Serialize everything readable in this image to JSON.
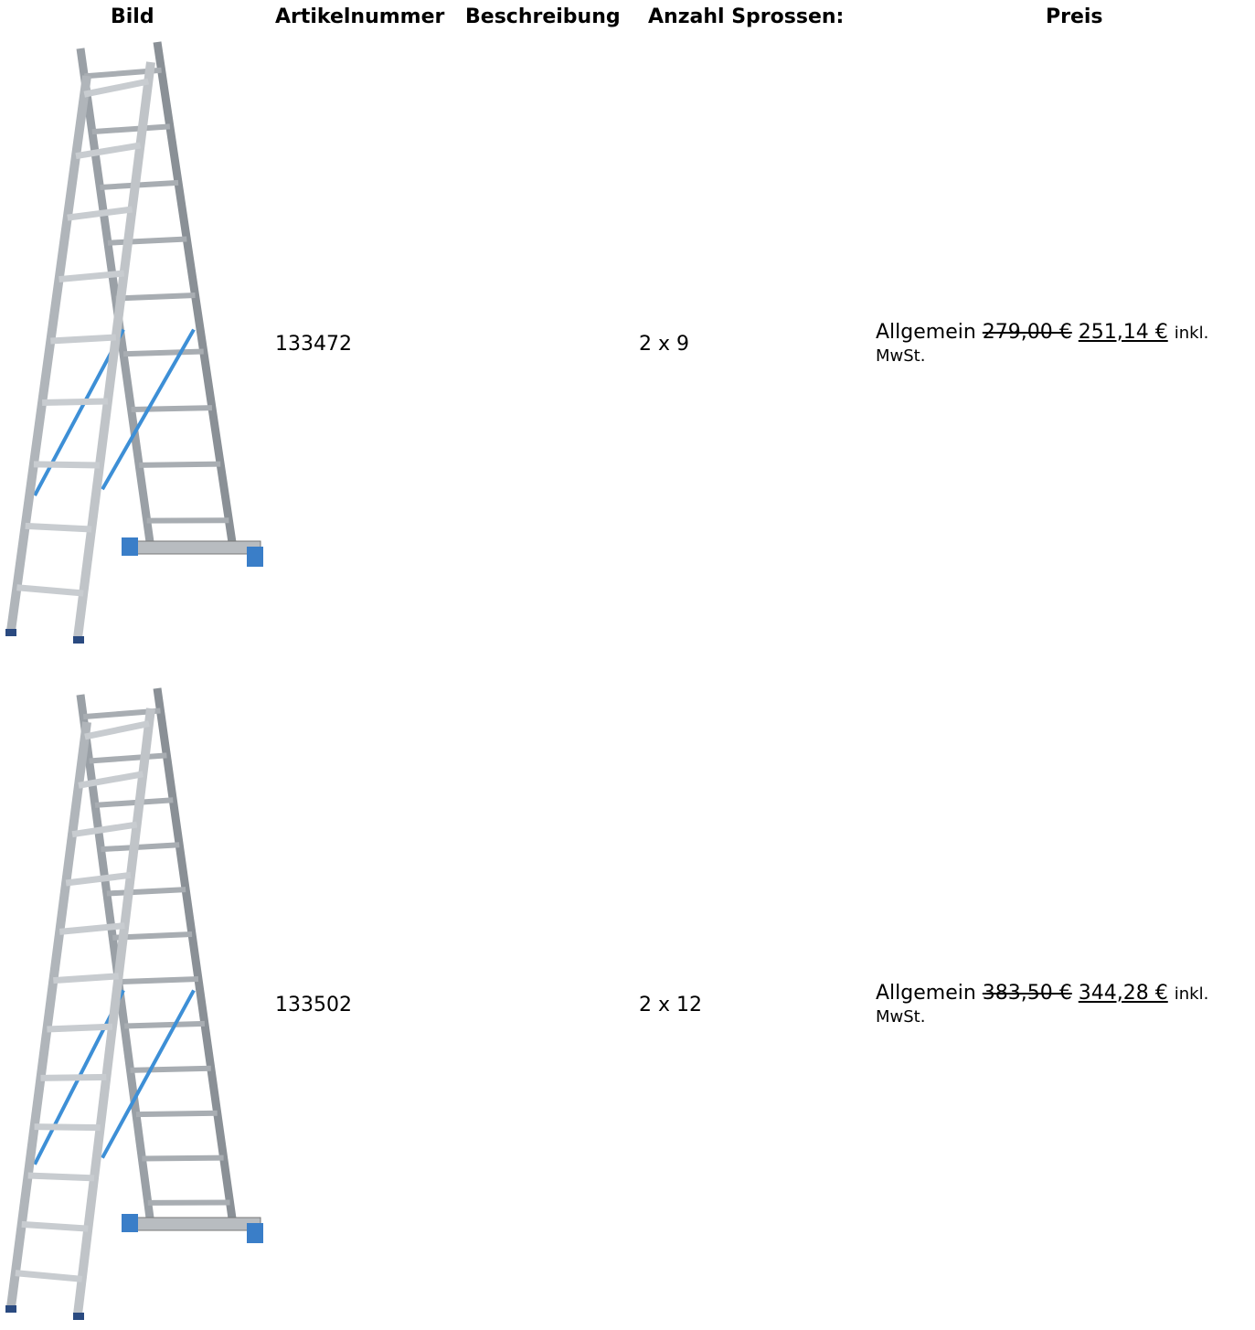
{
  "table": {
    "headers": [
      "Bild",
      "Artikelnummer",
      "Beschreibung",
      "Anzahl Sprossen:",
      "Preis"
    ],
    "rows": [
      {
        "article": "133472",
        "rungs": "2 x 9",
        "price": {
          "group": "Allgemein",
          "old": "279,00 €",
          "new": "251,14 €",
          "note": "inkl. MwSt."
        }
      },
      {
        "article": "133502",
        "rungs": "2 x 12",
        "price": {
          "group": "Allgemein",
          "old": "383,50 €",
          "new": "344,28 €",
          "note": "inkl. MwSt."
        }
      }
    ]
  }
}
